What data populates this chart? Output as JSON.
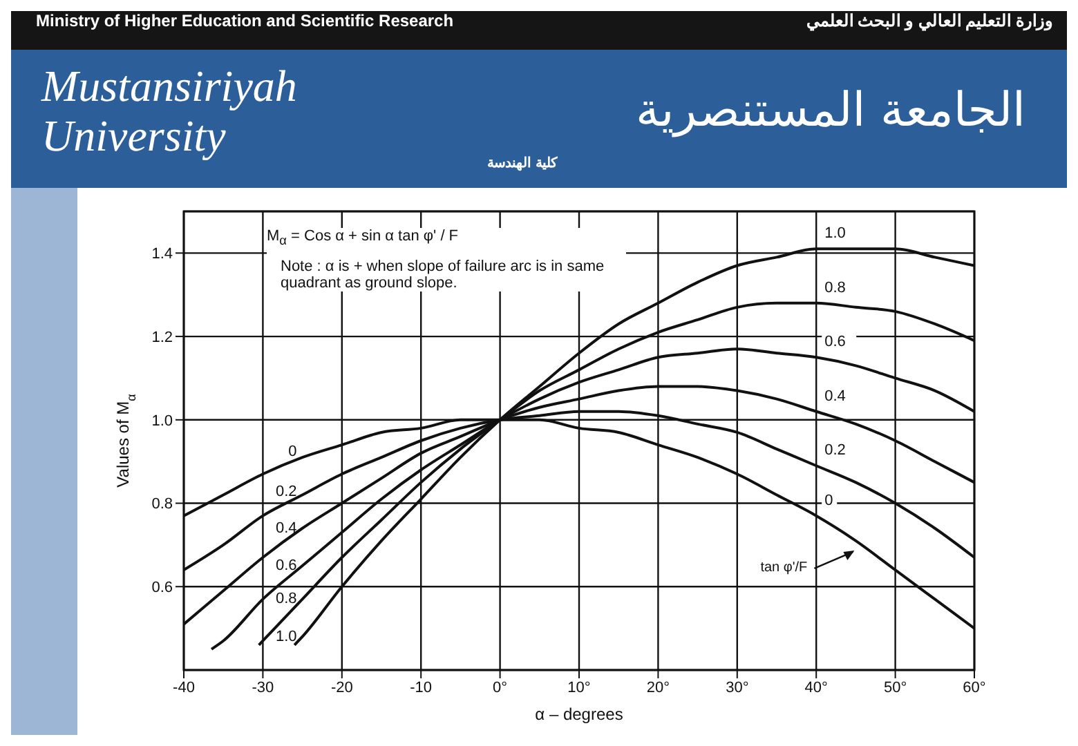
{
  "chart_data": {
    "type": "line",
    "xlabel": "α – degrees",
    "ylabel": "Values of M$_{α}$",
    "xlim": [
      -40,
      60
    ],
    "xticks": [
      {
        "value": -40,
        "label": "-40"
      },
      {
        "value": -30,
        "label": "-30"
      },
      {
        "value": -20,
        "label": "-20"
      },
      {
        "value": -10,
        "label": "-10"
      },
      {
        "value": 0,
        "label": "0°"
      },
      {
        "value": 10,
        "label": "10°"
      },
      {
        "value": 20,
        "label": "20°"
      },
      {
        "value": 30,
        "label": "30°"
      },
      {
        "value": 40,
        "label": "40°"
      },
      {
        "value": 50,
        "label": "50°"
      },
      {
        "value": 60,
        "label": "60°"
      }
    ],
    "ylim": [
      0.4,
      1.5
    ],
    "yticks": [
      0.6,
      0.8,
      {
        "value": 1,
        "label": "1.0"
      },
      1.2,
      1.4
    ],
    "grid": true,
    "series": [
      {
        "name": "0",
        "color": "#111111",
        "x": [
          -40,
          -35,
          -30,
          -25,
          -20,
          -15,
          -10,
          -5,
          0,
          5,
          10,
          15,
          20,
          25,
          30,
          35,
          40,
          45,
          50,
          55,
          60
        ],
        "values": [
          0.77,
          0.82,
          0.87,
          0.91,
          0.94,
          0.97,
          0.98,
          1.0,
          1.0,
          1.0,
          0.98,
          0.97,
          0.94,
          0.91,
          0.87,
          0.82,
          0.77,
          0.71,
          0.64,
          0.57,
          0.5
        ]
      },
      {
        "name": "0.2",
        "color": "#111111",
        "x": [
          -40,
          -35,
          -30,
          -25,
          -20,
          -15,
          -10,
          -5,
          0,
          5,
          10,
          15,
          20,
          25,
          30,
          35,
          40,
          45,
          50,
          55,
          60
        ],
        "values": [
          0.64,
          0.7,
          0.77,
          0.82,
          0.87,
          0.91,
          0.95,
          0.98,
          1.0,
          1.01,
          1.02,
          1.02,
          1.01,
          0.99,
          0.97,
          0.93,
          0.89,
          0.85,
          0.8,
          0.74,
          0.67
        ]
      },
      {
        "name": "0.4",
        "color": "#111111",
        "x": [
          -40,
          -35,
          -30,
          -25,
          -20,
          -15,
          -10,
          -5,
          0,
          5,
          10,
          15,
          20,
          25,
          30,
          35,
          40,
          45,
          50,
          55,
          60
        ],
        "values": [
          0.51,
          0.59,
          0.67,
          0.74,
          0.8,
          0.86,
          0.92,
          0.96,
          1.0,
          1.03,
          1.05,
          1.07,
          1.08,
          1.08,
          1.07,
          1.05,
          1.02,
          0.99,
          0.95,
          0.9,
          0.85
        ]
      },
      {
        "name": "0.6",
        "color": "#111111",
        "x": [
          -36.5,
          -35,
          -30,
          -25,
          -20,
          -15,
          -10,
          -5,
          0,
          5,
          10,
          15,
          20,
          25,
          30,
          35,
          40,
          45,
          50,
          55,
          60
        ],
        "values": [
          0.45,
          0.47,
          0.57,
          0.65,
          0.73,
          0.81,
          0.88,
          0.94,
          1.0,
          1.05,
          1.09,
          1.12,
          1.15,
          1.16,
          1.17,
          1.16,
          1.15,
          1.13,
          1.1,
          1.07,
          1.02
        ]
      },
      {
        "name": "0.8",
        "color": "#111111",
        "x": [
          -30.5,
          -30,
          -25,
          -20,
          -15,
          -10,
          -5,
          0,
          5,
          10,
          15,
          20,
          25,
          30,
          35,
          40,
          45,
          50,
          55,
          60
        ],
        "values": [
          0.46,
          0.47,
          0.57,
          0.67,
          0.76,
          0.85,
          0.93,
          1.0,
          1.07,
          1.12,
          1.17,
          1.21,
          1.24,
          1.27,
          1.28,
          1.28,
          1.27,
          1.26,
          1.23,
          1.19
        ]
      },
      {
        "name": "1.0",
        "color": "#111111",
        "x": [
          -26,
          -25,
          -20,
          -15,
          -10,
          -5,
          0,
          5,
          10,
          15,
          20,
          25,
          30,
          35,
          40,
          45,
          50,
          55,
          60
        ],
        "values": [
          0.46,
          0.48,
          0.6,
          0.71,
          0.81,
          0.91,
          1.0,
          1.08,
          1.16,
          1.23,
          1.28,
          1.33,
          1.37,
          1.39,
          1.41,
          1.41,
          1.41,
          1.39,
          1.37
        ]
      }
    ],
    "annotations": [
      "Ministry of Higher Education and Scientific Research",
      "وزارة التعليم العالي و البحث العلمي",
      "Mustansiriyah University",
      "الجامعة المستنصرية",
      "كلية الهندسة",
      "M$_{α}$ = Cos α + sin α tan φ' / F",
      "Note : α is + when slope of failure arc is in same quadrant as ground slope.",
      {
        "text": "tan φ'/F",
        "x": 45,
        "y": 0.69
      }
    ]
  }
}
